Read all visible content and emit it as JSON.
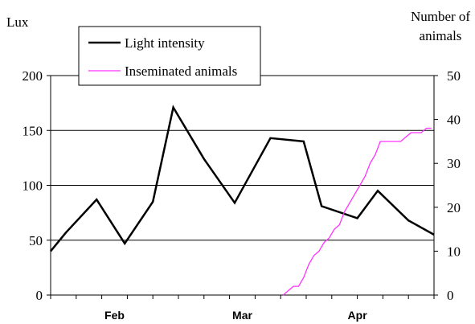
{
  "chart_data": {
    "type": "line",
    "left_axis_label": "Lux",
    "right_axis_label_lines": [
      "Number of",
      "animals"
    ],
    "left_ylim": [
      0,
      200
    ],
    "left_ticks": [
      "0",
      "50",
      "100",
      "150",
      "200"
    ],
    "right_ylim": [
      0,
      50
    ],
    "right_ticks": [
      "0",
      "10",
      "20",
      "30",
      "40",
      "50"
    ],
    "x_tick_labels": [
      "Feb",
      "Mar",
      "Apr"
    ],
    "gridlines_left": [
      50,
      100,
      150,
      200
    ],
    "legend_position": "top-left",
    "series": [
      {
        "name": "Light intensity",
        "axis": "left",
        "color": "#000000",
        "x": [
          0,
          0.6,
          1.8,
          2.9,
          4.0,
          4.8,
          6.0,
          7.2,
          8.6,
          9.9,
          10.6,
          12.0,
          12.8,
          14.0,
          15.0
        ],
        "values": [
          40,
          57,
          87,
          47,
          85,
          171,
          124,
          84,
          143,
          140,
          81,
          70,
          95,
          68,
          55
        ]
      },
      {
        "name": "Inseminated animals",
        "axis": "right",
        "color": "#ff33ff",
        "x": [
          9.1,
          9.3,
          9.5,
          9.7,
          9.9,
          10.1,
          10.3,
          10.5,
          10.7,
          10.9,
          11.1,
          11.3,
          11.5,
          11.7,
          11.9,
          12.1,
          12.3,
          12.5,
          12.7,
          12.9,
          13.1,
          13.3,
          13.5,
          13.7,
          13.9,
          14.1,
          14.3,
          14.5,
          14.7,
          14.9
        ],
        "values": [
          0,
          1,
          2,
          2,
          4,
          7,
          9,
          10,
          12,
          13,
          15,
          16,
          19,
          21,
          23,
          25,
          27,
          30,
          32,
          35,
          35,
          35,
          35,
          35,
          36,
          37,
          37,
          37,
          38,
          38
        ]
      }
    ]
  }
}
